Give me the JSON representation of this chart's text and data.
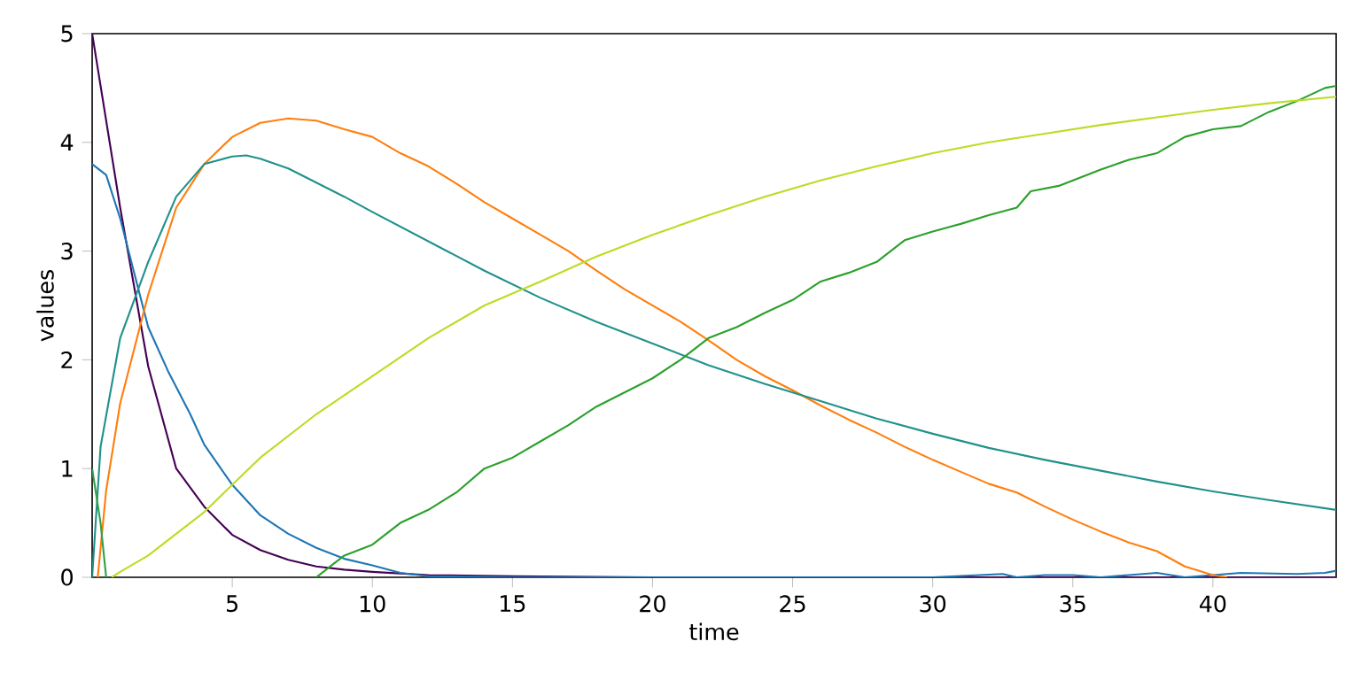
{
  "chart_data": {
    "type": "line",
    "xlabel": "time",
    "ylabel": "values",
    "xlim": [
      0,
      44.4
    ],
    "ylim": [
      0,
      5
    ],
    "xticks": [
      5,
      10,
      15,
      20,
      25,
      30,
      35,
      40
    ],
    "yticks": [
      0,
      1,
      2,
      3,
      4,
      5
    ],
    "grid": false,
    "legend": false,
    "marker": "none",
    "line_style": "solid",
    "series": [
      {
        "color": "#440154",
        "x": [
          0,
          1,
          2,
          3,
          4,
          5,
          6,
          7,
          8,
          9,
          10,
          12,
          15,
          20,
          44.4
        ],
        "values": [
          5,
          3.4,
          1.94,
          1.0,
          0.65,
          0.39,
          0.25,
          0.16,
          0.1,
          0.07,
          0.05,
          0.02,
          0.01,
          0,
          0
        ]
      },
      {
        "color": "#1f77b4",
        "x": [
          0,
          0.5,
          1,
          1.5,
          2,
          2.7,
          3.5,
          4,
          5,
          6,
          7,
          8,
          9,
          10,
          11,
          12,
          15,
          30,
          32.5,
          33,
          34,
          35,
          36,
          37,
          38,
          39,
          40,
          41,
          43,
          44,
          44.4
        ],
        "values": [
          3.8,
          3.7,
          3.3,
          2.8,
          2.3,
          1.9,
          1.5,
          1.22,
          0.85,
          0.57,
          0.4,
          0.27,
          0.17,
          0.11,
          0.04,
          0.01,
          0,
          0,
          0.03,
          0,
          0.02,
          0.02,
          0,
          0.02,
          0.04,
          0,
          0.02,
          0.04,
          0.03,
          0.04,
          0.06
        ]
      },
      {
        "color": "#ff7f0e",
        "x": [
          0.2,
          0.5,
          1,
          2,
          3,
          4,
          5,
          6,
          7,
          8,
          9,
          10,
          11,
          12,
          13,
          14,
          15,
          16,
          17,
          18,
          19,
          20,
          21,
          22,
          23,
          24,
          25,
          26,
          27,
          28,
          29,
          30,
          31,
          32,
          33,
          34,
          35,
          36,
          37,
          38,
          39,
          40,
          40.5
        ],
        "values": [
          0,
          0.8,
          1.6,
          2.6,
          3.4,
          3.8,
          4.05,
          4.18,
          4.22,
          4.2,
          4.12,
          4.05,
          3.9,
          3.78,
          3.62,
          3.45,
          3.3,
          3.15,
          3.0,
          2.82,
          2.65,
          2.5,
          2.35,
          2.18,
          2.0,
          1.85,
          1.72,
          1.58,
          1.45,
          1.33,
          1.2,
          1.08,
          0.97,
          0.86,
          0.78,
          0.65,
          0.53,
          0.42,
          0.32,
          0.24,
          0.1,
          0.02,
          0
        ]
      },
      {
        "color": "#21918c",
        "x": [
          0,
          0.3,
          1,
          2,
          3,
          4,
          5,
          5.5,
          6,
          7,
          8,
          9,
          10,
          12,
          14,
          16,
          18,
          20,
          22,
          24,
          26,
          28,
          30,
          32,
          34,
          36,
          38,
          40,
          42,
          44.4
        ],
        "values": [
          0,
          1.2,
          2.2,
          2.9,
          3.5,
          3.8,
          3.87,
          3.88,
          3.85,
          3.76,
          3.63,
          3.5,
          3.36,
          3.09,
          2.82,
          2.57,
          2.35,
          2.15,
          1.95,
          1.78,
          1.62,
          1.46,
          1.32,
          1.19,
          1.08,
          0.98,
          0.88,
          0.79,
          0.71,
          0.62
        ]
      },
      {
        "color": "#2ca02c",
        "x": [
          8,
          8.5,
          9,
          10,
          11,
          12,
          13,
          14,
          15,
          16,
          17,
          18,
          19,
          20,
          21,
          22,
          23,
          24,
          25,
          26,
          27,
          28,
          29,
          30,
          31,
          32,
          33,
          33.5,
          34.5,
          36,
          37,
          38,
          39,
          40,
          41,
          42,
          43,
          44,
          44.4
        ],
        "values": [
          0,
          0.1,
          0.2,
          0.3,
          0.5,
          0.62,
          0.78,
          1.0,
          1.1,
          1.25,
          1.4,
          1.57,
          1.7,
          1.83,
          2.0,
          2.2,
          2.3,
          2.43,
          2.55,
          2.72,
          2.8,
          2.9,
          3.1,
          3.18,
          3.25,
          3.33,
          3.4,
          3.55,
          3.6,
          3.75,
          3.84,
          3.9,
          4.05,
          4.12,
          4.15,
          4.28,
          4.38,
          4.5,
          4.52
        ]
      },
      {
        "color": "#bcdc24",
        "x": [
          0.7,
          1,
          2,
          3,
          4,
          5,
          6,
          8,
          10,
          12,
          14,
          16,
          18,
          20,
          22,
          24,
          26,
          28,
          30,
          32,
          34,
          36,
          38,
          40,
          42,
          44.4
        ],
        "values": [
          0,
          0.05,
          0.2,
          0.4,
          0.6,
          0.85,
          1.1,
          1.5,
          1.85,
          2.2,
          2.5,
          2.72,
          2.95,
          3.15,
          3.33,
          3.5,
          3.65,
          3.78,
          3.9,
          4.0,
          4.08,
          4.16,
          4.23,
          4.3,
          4.36,
          4.42
        ]
      },
      {
        "color": "#35a04a",
        "x": [
          0,
          0.3,
          0.5
        ],
        "values": [
          1.0,
          0.5,
          0
        ]
      }
    ]
  }
}
